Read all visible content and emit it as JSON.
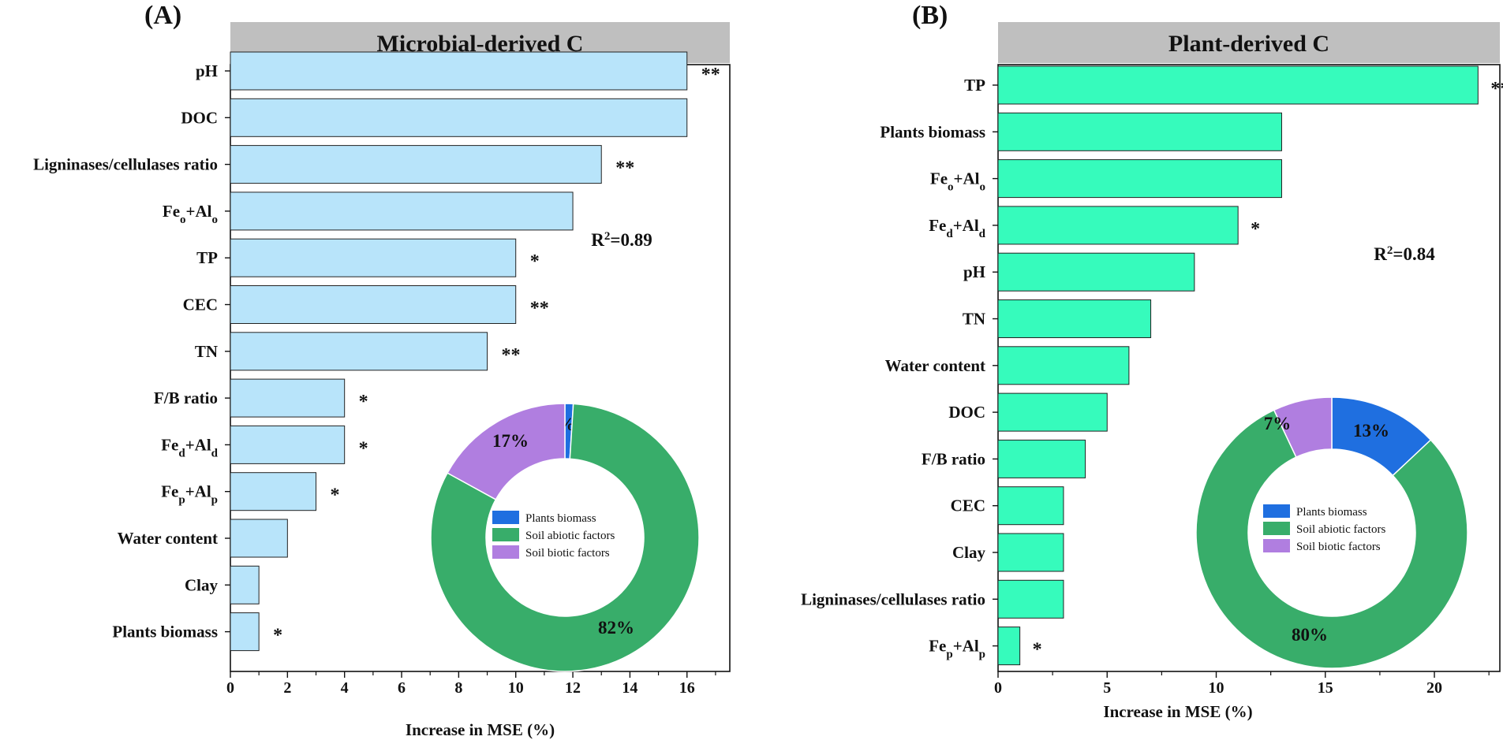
{
  "chart_data": [
    {
      "type": "bar",
      "orientation": "horizontal",
      "panel_label": "(A)",
      "title": "Microbial-derived C",
      "xlabel": "Increase in MSE (%)",
      "xlim": [
        0,
        17.5
      ],
      "xticks": [
        0,
        2,
        4,
        6,
        8,
        10,
        12,
        14,
        16
      ],
      "bar_color": "#b8e4fa",
      "categories": [
        {
          "label": "pH",
          "html": "pH"
        },
        {
          "label": "DOC",
          "html": "DOC"
        },
        {
          "label": "Ligninases/cellulases ratio",
          "html": "Ligninases/cellulases ratio"
        },
        {
          "label": "Feo+Alo",
          "html": "Fe<tspan class=\"sub\">o</tspan>+Al<tspan class=\"sub\">o</tspan>"
        },
        {
          "label": "TP",
          "html": "TP"
        },
        {
          "label": "CEC",
          "html": "CEC"
        },
        {
          "label": "TN",
          "html": "TN"
        },
        {
          "label": "F/B ratio",
          "html": "F/B ratio"
        },
        {
          "label": "Fed+Ald",
          "html": "Fe<tspan class=\"sub\">d</tspan>+Al<tspan class=\"sub\">d</tspan>"
        },
        {
          "label": "Fep+Alp",
          "html": "Fe<tspan class=\"sub\">p</tspan>+Al<tspan class=\"sub\">p</tspan>"
        },
        {
          "label": "Water content",
          "html": "Water content"
        },
        {
          "label": "Clay",
          "html": "Clay"
        },
        {
          "label": "Plants biomass",
          "html": "Plants biomass"
        }
      ],
      "values": [
        16,
        16,
        13,
        12,
        10,
        10,
        9,
        4,
        4,
        3,
        2,
        1,
        1
      ],
      "significance": [
        "**",
        "",
        "**",
        "",
        "*",
        "**",
        "**",
        "*",
        "*",
        "*",
        "",
        "",
        "*"
      ],
      "r2": "R²=0.89",
      "donut": {
        "slices": [
          {
            "name": "Plants biomass",
            "value": 1,
            "label": "1%",
            "color": "#1f6fe0"
          },
          {
            "name": "Soil abiotic factors",
            "value": 82,
            "label": "82%",
            "color": "#38ad6a"
          },
          {
            "name": "Soil biotic factors",
            "value": 17,
            "label": "17%",
            "color": "#b07ee0"
          }
        ]
      }
    },
    {
      "type": "bar",
      "orientation": "horizontal",
      "panel_label": "(B)",
      "title": "Plant-derived C",
      "xlabel": "Increase in MSE (%)",
      "xlim": [
        0,
        23
      ],
      "xticks": [
        0,
        5,
        10,
        15,
        20
      ],
      "bar_color": "#36fbbc",
      "categories": [
        {
          "label": "TP",
          "html": "TP"
        },
        {
          "label": "Plants biomass",
          "html": "Plants biomass"
        },
        {
          "label": "Feo+Alo",
          "html": "Fe<tspan class=\"sub\">o</tspan>+Al<tspan class=\"sub\">o</tspan>"
        },
        {
          "label": "Fed+Ald",
          "html": "Fe<tspan class=\"sub\">d</tspan>+Al<tspan class=\"sub\">d</tspan>"
        },
        {
          "label": "pH",
          "html": "pH"
        },
        {
          "label": "TN",
          "html": "TN"
        },
        {
          "label": "Water content",
          "html": "Water content"
        },
        {
          "label": "DOC",
          "html": "DOC"
        },
        {
          "label": "F/B ratio",
          "html": "F/B ratio"
        },
        {
          "label": "CEC",
          "html": "CEC"
        },
        {
          "label": "Clay",
          "html": "Clay"
        },
        {
          "label": "Ligninases/cellulases ratio",
          "html": "Ligninases/cellulases ratio"
        },
        {
          "label": "Fep+Alp",
          "html": "Fe<tspan class=\"sub\">p</tspan>+Al<tspan class=\"sub\">p</tspan>"
        }
      ],
      "values": [
        22,
        13,
        13,
        11,
        9,
        7,
        6,
        5,
        4,
        3,
        3,
        3,
        1
      ],
      "significance": [
        "**",
        "",
        "",
        "*",
        "",
        "",
        "",
        "",
        "",
        "",
        "",
        "",
        "*"
      ],
      "r2": "R²=0.84",
      "donut": {
        "slices": [
          {
            "name": "Plants biomass",
            "value": 13,
            "label": "13%",
            "color": "#1f6fe0"
          },
          {
            "name": "Soil abiotic factors",
            "value": 80,
            "label": "80%",
            "color": "#38ad6a"
          },
          {
            "name": "Soil biotic factors",
            "value": 7,
            "label": "7%",
            "color": "#b07ee0"
          }
        ]
      }
    }
  ]
}
